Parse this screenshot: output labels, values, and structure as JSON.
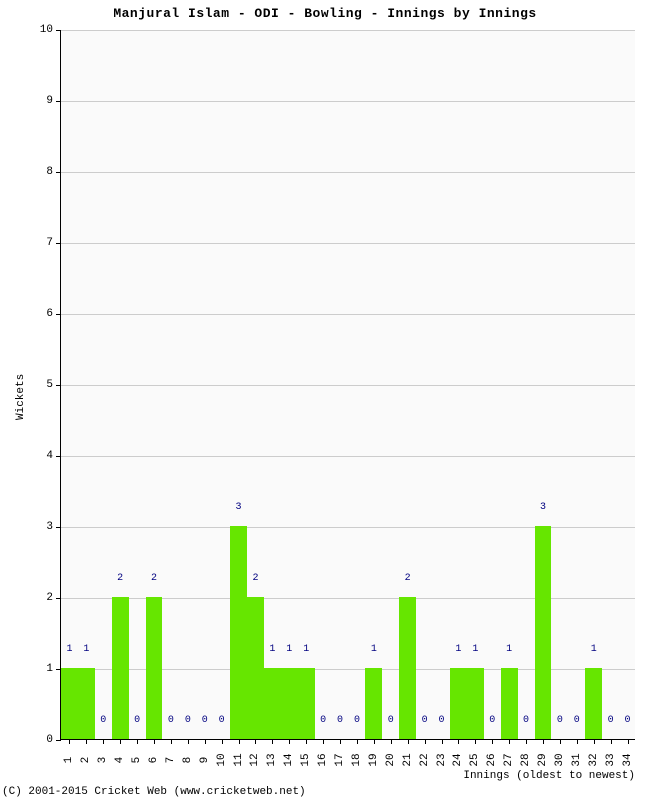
{
  "title": "Manjural Islam - ODI - Bowling - Innings by Innings",
  "title_fontsize": 13,
  "title_color": "#000000",
  "ylabel": "Wickets",
  "xlabel": "Innings (oldest to newest)",
  "axis_label_fontsize": 11,
  "axis_label_color": "#000000",
  "copyright": "(C) 2001-2015 Cricket Web (www.cricketweb.net)",
  "plot": {
    "background_color": "#fafafa",
    "grid_color": "#cccccc",
    "ylim": [
      0,
      10
    ],
    "ytick_step": 1,
    "x_count": 34,
    "categories": [
      "1",
      "2",
      "3",
      "4",
      "5",
      "6",
      "7",
      "8",
      "9",
      "10",
      "11",
      "12",
      "13",
      "14",
      "15",
      "16",
      "17",
      "18",
      "19",
      "20",
      "21",
      "22",
      "23",
      "24",
      "25",
      "26",
      "27",
      "28",
      "29",
      "30",
      "31",
      "32",
      "33",
      "34"
    ],
    "values": [
      1,
      1,
      0,
      2,
      0,
      2,
      0,
      0,
      0,
      0,
      3,
      2,
      1,
      1,
      1,
      0,
      0,
      0,
      1,
      0,
      2,
      0,
      0,
      1,
      1,
      0,
      1,
      0,
      3,
      0,
      0,
      1,
      0,
      0
    ],
    "bar_color": "#66e600",
    "bar_width_ratio": 1.0,
    "value_label_color": "#000080",
    "value_label_fontsize": 10,
    "tick_label_fontsize": 11
  }
}
